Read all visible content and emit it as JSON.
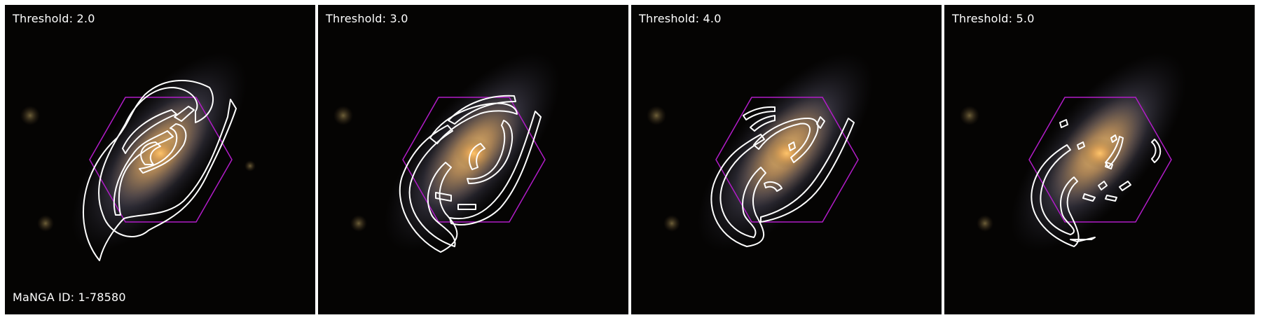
{
  "panels": [
    {
      "threshold_label": "Threshold: 2.0"
    },
    {
      "threshold_label": "Threshold: 3.0"
    },
    {
      "threshold_label": "Threshold: 4.0"
    },
    {
      "threshold_label": "Threshold: 5.0"
    }
  ],
  "galaxy_id_label": "MaNGA ID: 1-78580",
  "colors": {
    "background": "#050403",
    "contour": "#ffffff",
    "ifu_hexagon": "#b21cc8",
    "galaxy_core": "#ffb24a",
    "galaxy_halo": "#7d7e9a"
  },
  "icons": {
    "galaxy": "spiral-galaxy-image",
    "contour": "arm-contour-overlay",
    "hexagon": "ifu-footprint-hexagon"
  }
}
